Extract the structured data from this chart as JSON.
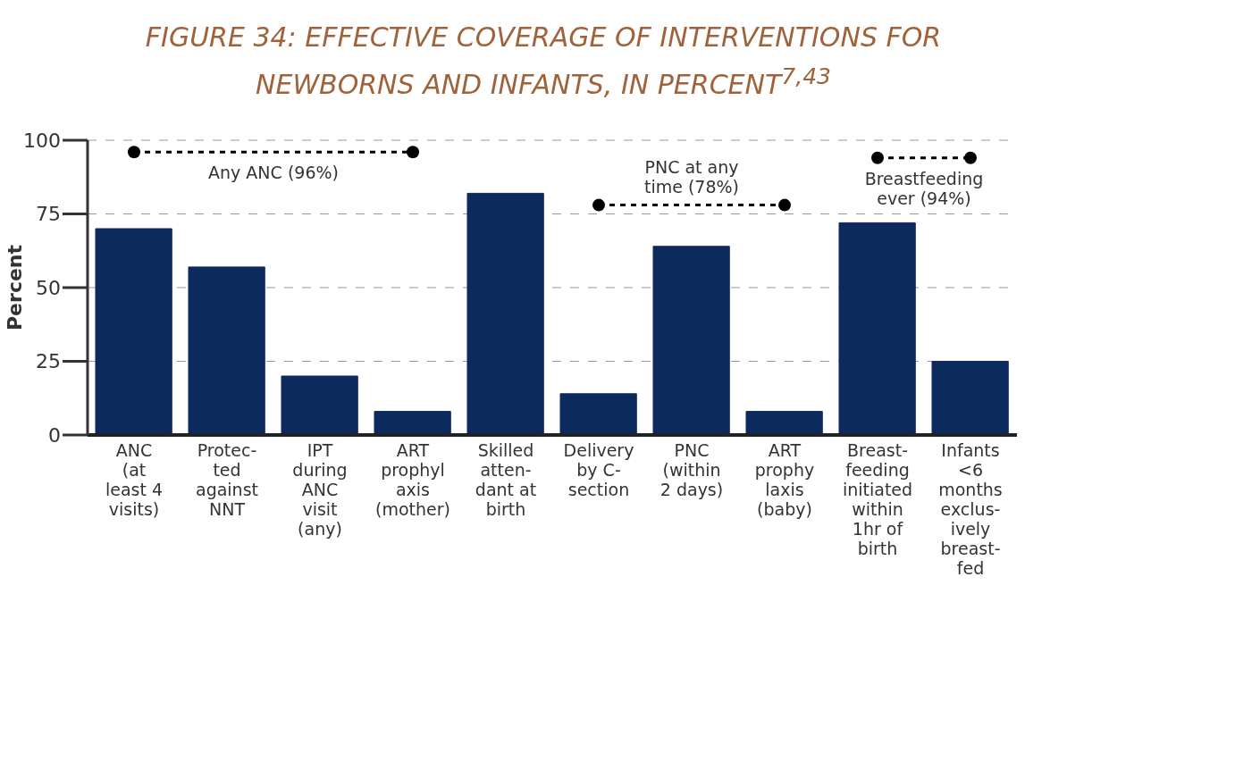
{
  "chart_data": {
    "type": "bar",
    "title": "FIGURE 34: EFFECTIVE COVERAGE OF INTERVENTIONS FOR NEWBORNS AND INFANTS, IN PERCENT$^{7,43}$",
    "ylabel": "Percent",
    "categories": [
      "ANC\n(at\nleast 4\nvisits)",
      "Protec-\nted\nagainst\nNNT",
      "IPT\nduring\nANC\nvisit\n(any)",
      "ART\nprophyl\naxis\n(mother)",
      "Skilled\natten-\ndant at\nbirth",
      "Delivery\nby C-\nsection",
      "PNC\n(within\n2 days)",
      "ART\nprophy\nlaxis\n(baby)",
      "Breast-\nfeeding\ninitiated\nwithin\n1hr of\nbirth",
      "Infants\n<6\nmonths\nexclus-\nively\nbreast-\nfed"
    ],
    "series": [
      {
        "color": "#0d2a5c",
        "values": [
          70,
          57,
          20,
          8,
          82,
          14,
          64,
          8,
          72,
          25
        ]
      },
      {
        "type": "line",
        "name": "Any ANC (96%)",
        "color": "#000000",
        "values": [
          96,
          96,
          96,
          96,
          null,
          null,
          null,
          null,
          null,
          null
        ]
      },
      {
        "type": "line",
        "name": "PNC at any\ntime (78%)",
        "color": "#000000",
        "values": [
          null,
          null,
          null,
          null,
          null,
          78,
          78,
          78,
          null,
          null
        ]
      },
      {
        "type": "line",
        "name": "Breastfeeding\never (94%)",
        "color": "#000000",
        "values": [
          null,
          null,
          null,
          null,
          null,
          null,
          null,
          null,
          94,
          94
        ]
      }
    ],
    "ylim": [
      0,
      100
    ],
    "yticks": [
      0,
      25,
      50,
      75,
      100
    ],
    "grid": "y",
    "marker": "circle",
    "line_style": "dashed"
  }
}
